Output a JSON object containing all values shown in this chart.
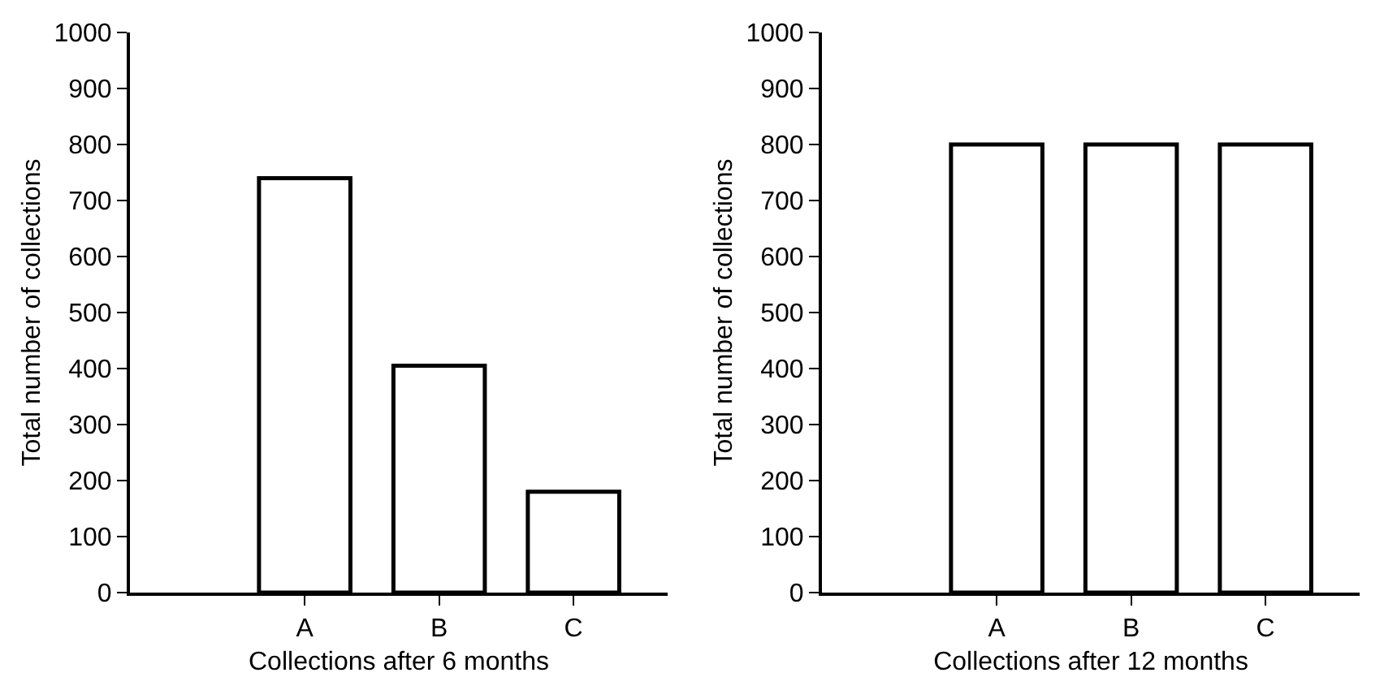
{
  "chart_data": [
    {
      "type": "bar",
      "xlabel": "Collections after 6 months",
      "ylabel": "Total number of collections",
      "categories": [
        "A",
        "B",
        "C"
      ],
      "values": [
        740,
        405,
        180
      ],
      "color": "#ffffff",
      "ylim": [
        0,
        1000
      ],
      "yticks": [
        0,
        100,
        200,
        300,
        400,
        500,
        600,
        700,
        800,
        900,
        1000
      ],
      "grid": false
    },
    {
      "type": "bar",
      "xlabel": "Collections after 12 months",
      "ylabel": "Total number of collections",
      "categories": [
        "A",
        "B",
        "C"
      ],
      "values": [
        800,
        800,
        800
      ],
      "color": "#ffffff",
      "ylim": [
        0,
        1000
      ],
      "yticks": [
        0,
        100,
        200,
        300,
        400,
        500,
        600,
        700,
        800,
        900,
        1000
      ],
      "grid": false
    }
  ]
}
